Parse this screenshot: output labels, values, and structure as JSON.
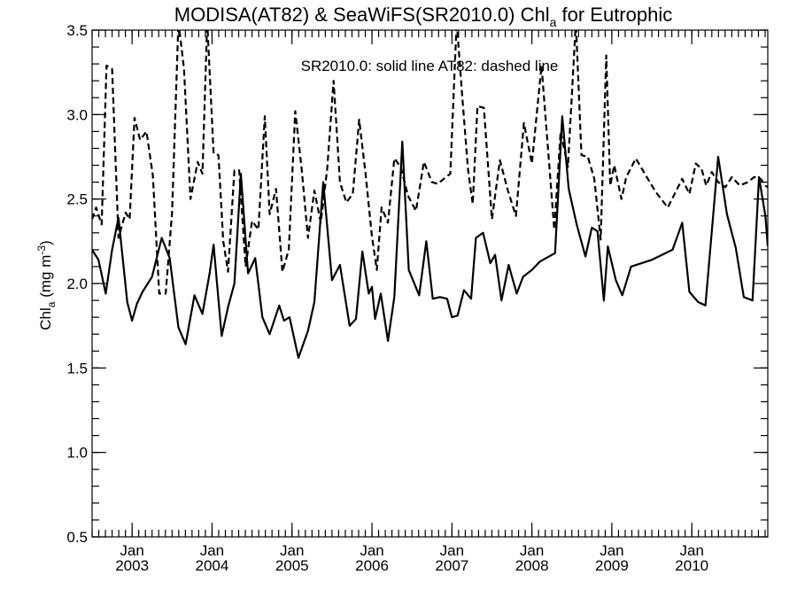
{
  "chart_data": {
    "type": "line",
    "title": {
      "main": "MODISA(AT82) & SeaWiFS(SR2010.0)  Chl",
      "subscript": "a",
      "suffix": " for Eutrophic"
    },
    "annotation": "SR2010.0: solid line   AT82: dashed line",
    "ylabel": {
      "prefix": "Chl",
      "subscript": "a",
      "unit": " (mg m",
      "unit_exp": "-3",
      "close": ")"
    },
    "xlabel": "",
    "xlim": [
      2002.5,
      2010.95
    ],
    "ylim": [
      0.5,
      3.5
    ],
    "y_ticks": [
      0.5,
      1.0,
      1.5,
      2.0,
      2.5,
      3.0,
      3.5
    ],
    "y_tick_labels": [
      "0.5",
      "1.0",
      "1.5",
      "2.0",
      "2.5",
      "3.0",
      "3.5"
    ],
    "x_ticks": [
      {
        "month": "Jan",
        "year": "2003",
        "x": 2003.0
      },
      {
        "month": "Jan",
        "year": "2004",
        "x": 2004.0
      },
      {
        "month": "Jan",
        "year": "2005",
        "x": 2005.0
      },
      {
        "month": "Jan",
        "year": "2006",
        "x": 2006.0
      },
      {
        "month": "Jan",
        "year": "2007",
        "x": 2007.0
      },
      {
        "month": "Jan",
        "year": "2008",
        "x": 2008.0
      },
      {
        "month": "Jan",
        "year": "2009",
        "x": 2009.0
      },
      {
        "month": "Jan",
        "year": "2010",
        "x": 2010.0
      }
    ],
    "grid": false,
    "series": [
      {
        "style": "solid",
        "x": [
          2002.5,
          2002.58,
          2002.67,
          2002.75,
          2002.83,
          2002.94,
          2003.0,
          2003.06,
          2003.13,
          2003.25,
          2003.37,
          2003.47,
          2003.58,
          2003.67,
          2003.78,
          2003.88,
          2003.97,
          2004.02,
          2004.12,
          2004.2,
          2004.28,
          2004.36,
          2004.45,
          2004.54,
          2004.63,
          2004.72,
          2004.84,
          2004.9,
          2004.97,
          2005.08,
          2005.2,
          2005.28,
          2005.39,
          2005.5,
          2005.6,
          2005.72,
          2005.8,
          2005.88,
          2005.96,
          2006.0,
          2006.04,
          2006.11,
          2006.2,
          2006.28,
          2006.38,
          2006.46,
          2006.59,
          2006.68,
          2006.76,
          2006.85,
          2006.94,
          2007.0,
          2007.07,
          2007.15,
          2007.24,
          2007.3,
          2007.39,
          2007.48,
          2007.54,
          2007.62,
          2007.71,
          2007.81,
          2007.89,
          2008.0,
          2008.1,
          2008.29,
          2008.38,
          2008.46,
          2008.56,
          2008.67,
          2008.75,
          2008.82,
          2008.9,
          2008.95,
          2009.05,
          2009.13,
          2009.24,
          2009.5,
          2009.76,
          2009.88,
          2009.97,
          2010.08,
          2010.17,
          2010.33,
          2010.44,
          2010.55,
          2010.65,
          2010.76,
          2010.84,
          2010.92,
          2010.95
        ],
        "y": [
          2.2,
          2.14,
          1.94,
          2.2,
          2.39,
          1.89,
          1.78,
          1.88,
          1.95,
          2.04,
          2.27,
          2.15,
          1.74,
          1.64,
          1.93,
          1.82,
          2.06,
          2.23,
          1.69,
          1.86,
          2.0,
          2.65,
          2.06,
          2.15,
          1.8,
          1.7,
          1.87,
          1.78,
          1.8,
          1.56,
          1.72,
          1.89,
          2.6,
          2.02,
          2.11,
          1.75,
          1.79,
          2.19,
          1.94,
          1.98,
          1.79,
          1.94,
          1.66,
          1.92,
          2.84,
          2.08,
          1.93,
          2.25,
          1.91,
          1.92,
          1.91,
          1.8,
          1.81,
          1.96,
          1.91,
          2.27,
          2.3,
          2.12,
          2.17,
          1.9,
          2.11,
          1.94,
          2.04,
          2.08,
          2.13,
          2.18,
          2.99,
          2.56,
          2.35,
          2.16,
          2.33,
          2.31,
          1.9,
          2.22,
          2.02,
          1.93,
          2.1,
          2.14,
          2.2,
          2.36,
          1.95,
          1.89,
          1.87,
          2.75,
          2.41,
          2.21,
          1.92,
          1.9,
          2.63,
          2.4,
          2.22
        ]
      },
      {
        "style": "dashed",
        "x": [
          2002.5,
          2002.55,
          2002.62,
          2002.68,
          2002.75,
          2002.83,
          2002.92,
          2002.97,
          2003.03,
          2003.1,
          2003.18,
          2003.26,
          2003.34,
          2003.42,
          2003.5,
          2003.58,
          2003.65,
          2003.73,
          2003.82,
          2003.88,
          2003.94,
          2004.02,
          2004.08,
          2004.14,
          2004.2,
          2004.28,
          2004.34,
          2004.42,
          2004.5,
          2004.58,
          2004.66,
          2004.72,
          2004.8,
          2004.88,
          2004.96,
          2005.04,
          2005.12,
          2005.2,
          2005.28,
          2005.36,
          2005.44,
          2005.52,
          2005.6,
          2005.68,
          2005.76,
          2005.84,
          2005.92,
          2006.0,
          2006.06,
          2006.12,
          2006.2,
          2006.28,
          2006.36,
          2006.45,
          2006.55,
          2006.65,
          2006.75,
          2006.82,
          2006.9,
          2006.98,
          2007.06,
          2007.13,
          2007.2,
          2007.26,
          2007.32,
          2007.4,
          2007.5,
          2007.6,
          2007.7,
          2007.8,
          2007.9,
          2008.0,
          2008.12,
          2008.28,
          2008.36,
          2008.45,
          2008.55,
          2008.62,
          2008.7,
          2008.78,
          2008.86,
          2008.93,
          2008.98,
          2009.03,
          2009.12,
          2009.18,
          2009.3,
          2009.4,
          2009.55,
          2009.7,
          2009.88,
          2009.97,
          2010.05,
          2010.12,
          2010.18,
          2010.25,
          2010.33,
          2010.42,
          2010.5,
          2010.6,
          2010.7,
          2010.78,
          2010.86,
          2010.92,
          2010.95
        ],
        "y": [
          2.38,
          2.45,
          2.35,
          3.29,
          3.27,
          2.27,
          2.42,
          2.38,
          2.98,
          2.85,
          2.9,
          2.64,
          1.94,
          1.94,
          2.42,
          3.55,
          3.27,
          2.5,
          2.72,
          2.65,
          3.55,
          2.77,
          2.76,
          2.25,
          2.07,
          2.67,
          2.67,
          2.1,
          2.37,
          2.32,
          2.99,
          2.41,
          2.56,
          2.07,
          2.2,
          3.02,
          2.68,
          2.27,
          2.55,
          2.36,
          2.68,
          3.2,
          2.6,
          2.48,
          2.53,
          2.97,
          2.65,
          2.28,
          2.08,
          2.45,
          2.36,
          2.74,
          2.69,
          2.52,
          2.43,
          2.72,
          2.6,
          2.59,
          2.62,
          2.65,
          3.55,
          3.1,
          2.68,
          2.47,
          3.05,
          3.04,
          2.38,
          2.73,
          2.55,
          2.4,
          2.95,
          2.71,
          3.29,
          2.32,
          2.9,
          2.69,
          3.55,
          2.76,
          2.75,
          2.62,
          2.26,
          3.35,
          2.58,
          2.7,
          2.5,
          2.63,
          2.74,
          2.66,
          2.54,
          2.45,
          2.62,
          2.53,
          2.71,
          2.68,
          2.58,
          2.66,
          2.6,
          2.57,
          2.63,
          2.58,
          2.6,
          2.63,
          2.62,
          2.58,
          2.57
        ]
      }
    ]
  }
}
